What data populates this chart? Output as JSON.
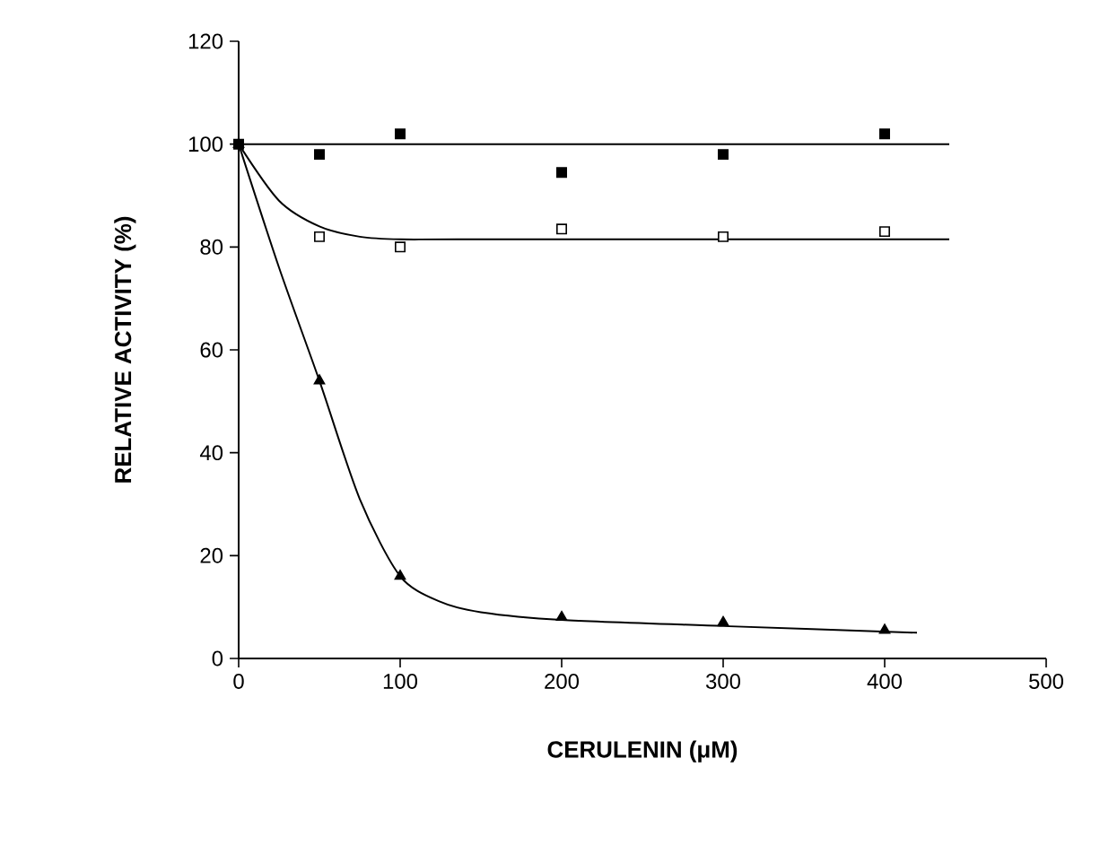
{
  "chart_data": {
    "type": "scatter",
    "xlabel": "CERULENIN (μM)",
    "ylabel": "RELATIVE ACTIVITY (%)",
    "xlim": [
      0,
      500
    ],
    "ylim": [
      0,
      120
    ],
    "xticks": [
      0,
      100,
      200,
      300,
      400,
      500
    ],
    "yticks": [
      0,
      20,
      40,
      60,
      80,
      100,
      120
    ],
    "grid": false,
    "series": [
      {
        "marker": "square",
        "color": "#000000",
        "x": [
          0,
          50,
          100,
          200,
          300,
          400
        ],
        "values": [
          100,
          98,
          102,
          94.5,
          98,
          102
        ]
      },
      {
        "marker": "square",
        "color": "#ffffff",
        "x": [
          50,
          100,
          200,
          300,
          400
        ],
        "values": [
          82,
          80,
          83.5,
          82,
          83
        ]
      },
      {
        "marker": "triangle",
        "color": "#000000",
        "x": [
          0,
          50,
          100,
          200,
          300,
          400
        ],
        "values": [
          100,
          54,
          16,
          8,
          7,
          5.5
        ]
      },
      {
        "type": "line",
        "color": "#000000",
        "x": [
          0,
          440
        ],
        "values": [
          100,
          100
        ]
      },
      {
        "type": "line",
        "color": "#000000",
        "x": [
          0,
          25,
          50,
          75,
          100,
          150,
          440
        ],
        "values": [
          100,
          89,
          84,
          82,
          81.5,
          81.5,
          81.5
        ]
      },
      {
        "type": "line",
        "color": "#000000",
        "x": [
          0,
          25,
          50,
          75,
          100,
          125,
          150,
          200,
          300,
          420
        ],
        "values": [
          100,
          76,
          54,
          31,
          16,
          11,
          9,
          7.5,
          6.3,
          5
        ]
      }
    ]
  }
}
